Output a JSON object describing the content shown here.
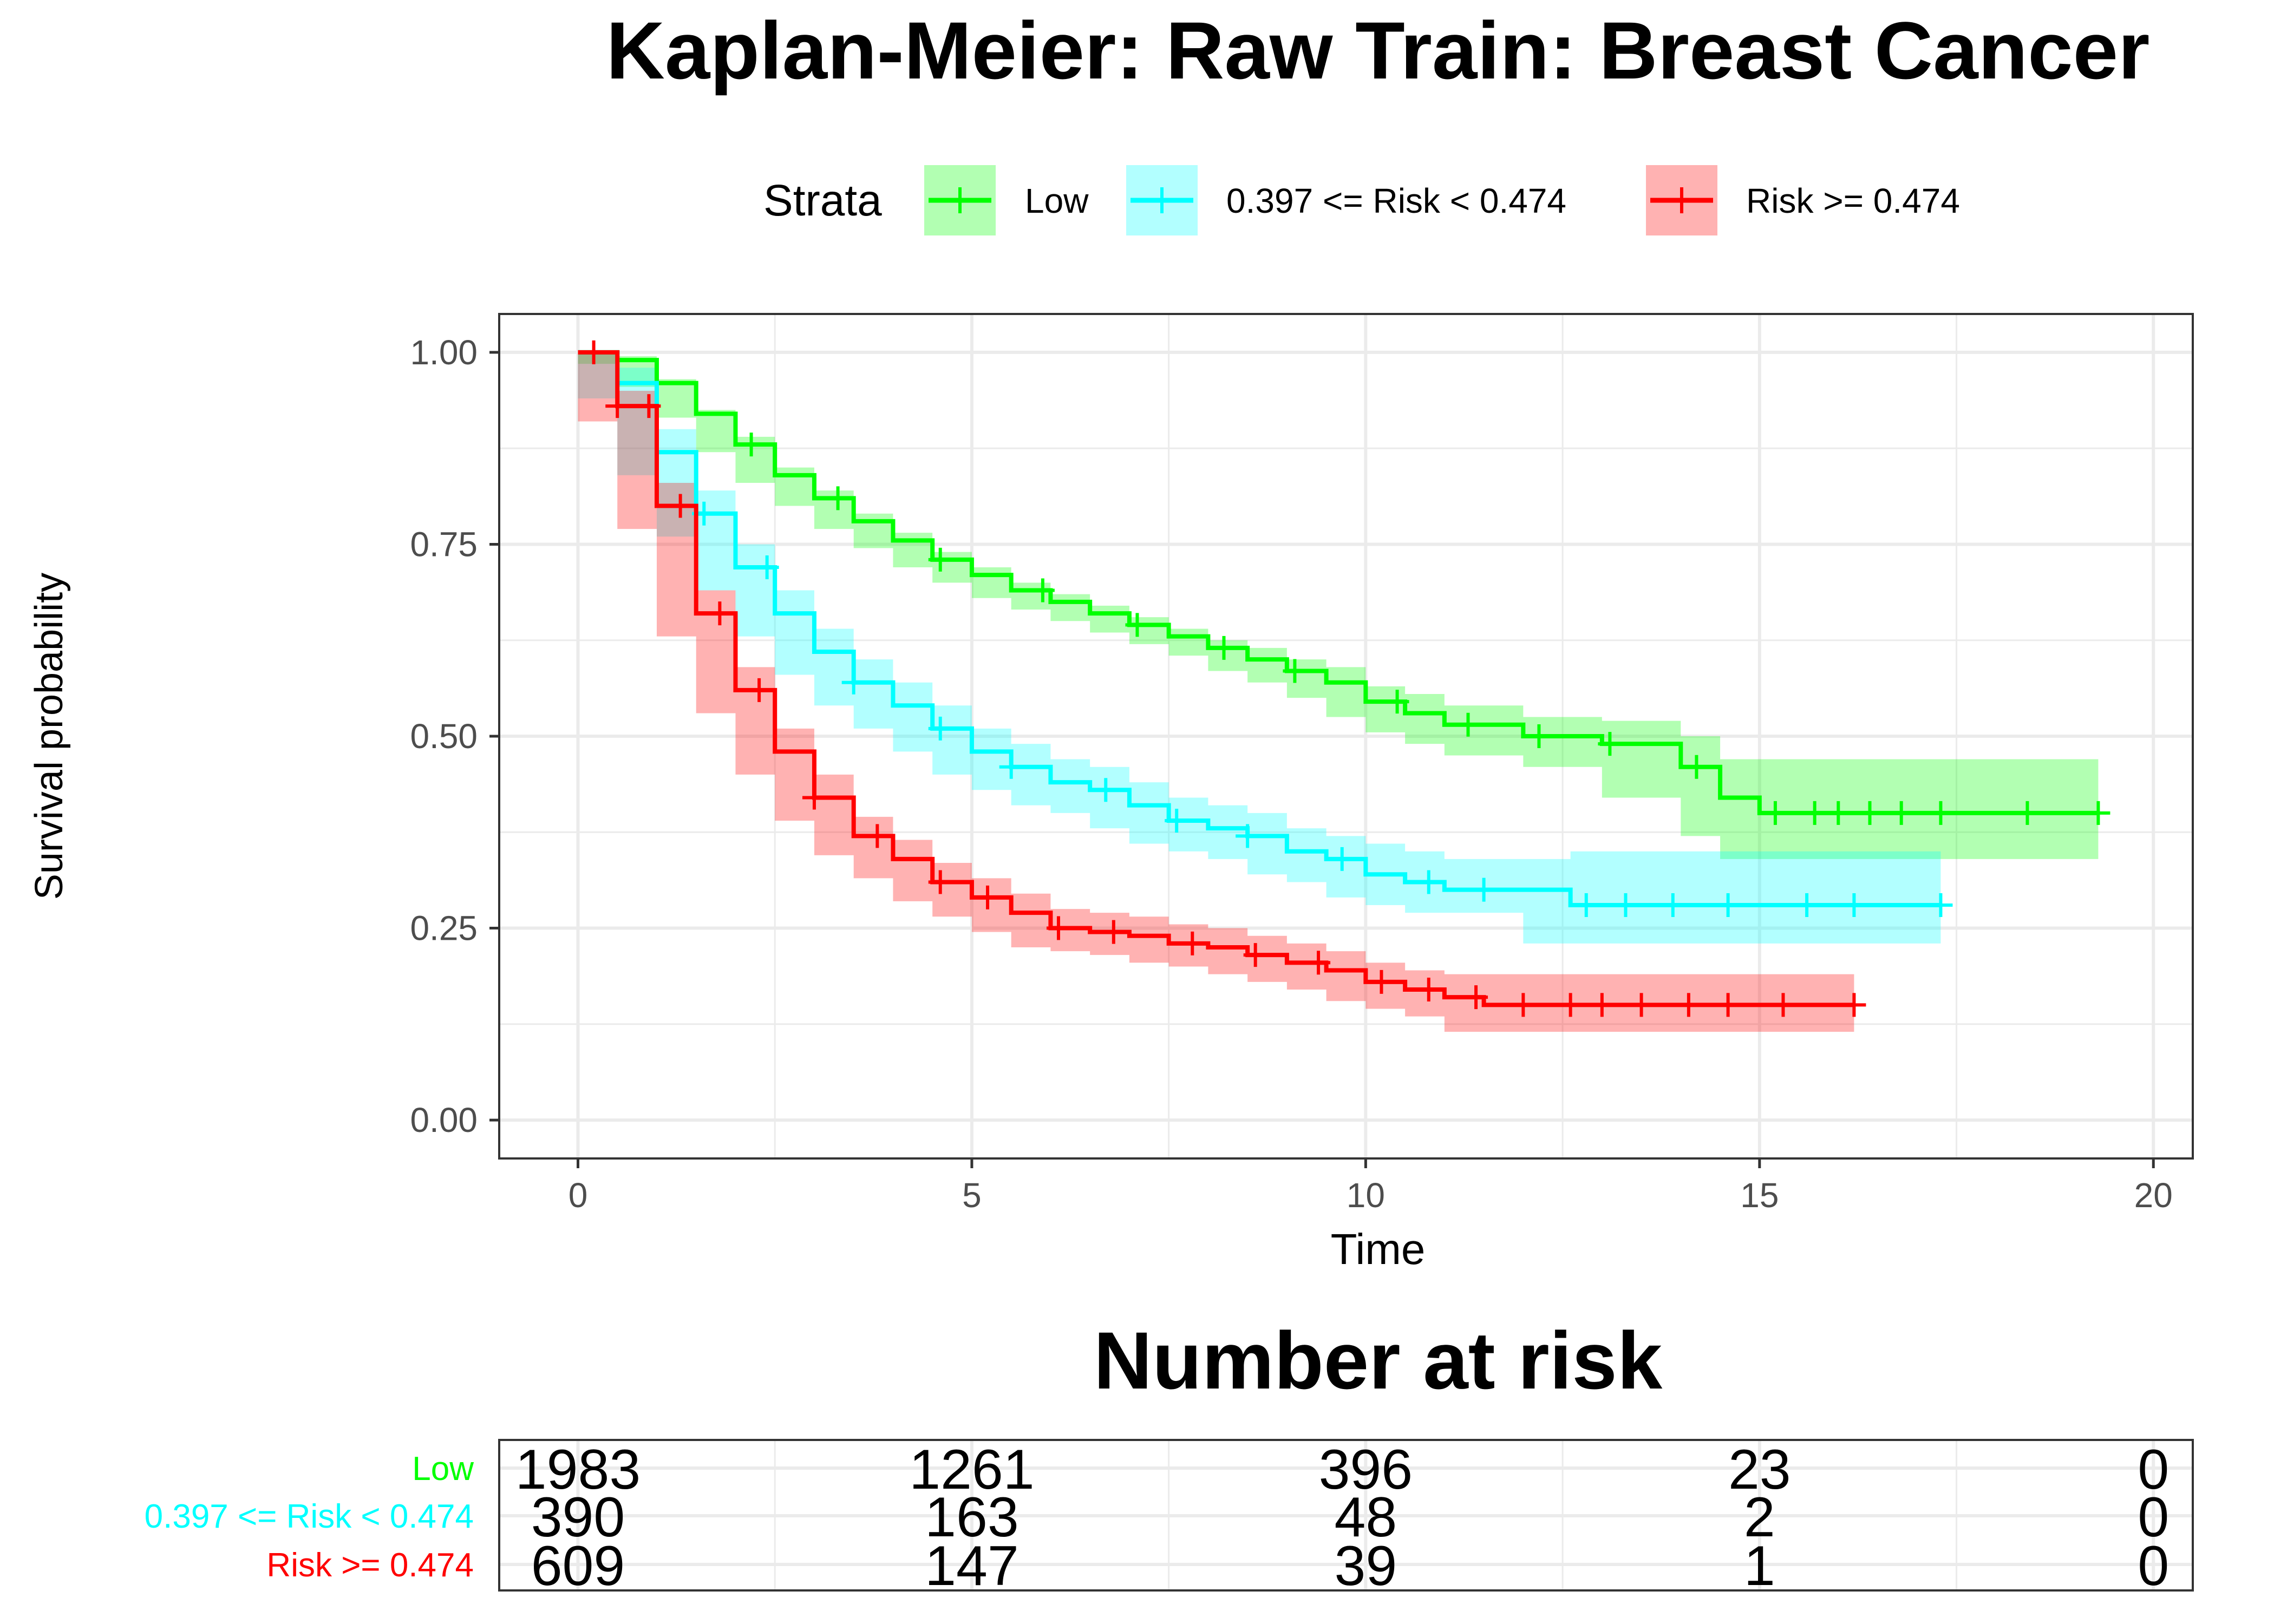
{
  "colors": {
    "low": "#00ff00",
    "mid": "#00ffff",
    "high": "#ff0000",
    "grid": "#ebebeb",
    "panel_border": "#333333",
    "tick_text": "#4d4d4d"
  },
  "chart_data": {
    "type": "line",
    "subtype": "kaplan-meier",
    "title": "Kaplan-Meier: Raw Train: Breast Cancer",
    "xlabel": "Time",
    "ylabel": "Survival probability",
    "xlim": [
      -1,
      20.5
    ],
    "ylim": [
      -0.05,
      1.05
    ],
    "x_ticks": [
      0,
      5,
      10,
      15,
      20
    ],
    "x_tick_labels": [
      "0",
      "5",
      "10",
      "15",
      "20"
    ],
    "y_ticks": [
      0,
      0.25,
      0.5,
      0.75,
      1.0
    ],
    "y_tick_labels": [
      "0.00",
      "0.25",
      "0.50",
      "0.75",
      "1.00"
    ],
    "grid": true,
    "legend": {
      "title": "Strata",
      "position": "top",
      "entries": [
        "Low",
        "0.397 <= Risk < 0.474",
        "Risk >= 0.474"
      ]
    },
    "series": [
      {
        "name": "Low",
        "color_key": "low",
        "x": [
          0,
          0.5,
          1,
          1.5,
          2,
          2.5,
          3,
          3.5,
          4,
          4.5,
          5,
          5.5,
          6,
          6.5,
          7,
          7.5,
          8,
          8.5,
          9,
          9.5,
          10,
          10.5,
          11,
          12,
          13,
          14,
          14.5,
          15,
          16,
          17,
          18,
          19,
          19.3
        ],
        "y": [
          1.0,
          0.99,
          0.96,
          0.92,
          0.88,
          0.84,
          0.81,
          0.78,
          0.755,
          0.73,
          0.71,
          0.69,
          0.675,
          0.66,
          0.645,
          0.63,
          0.615,
          0.6,
          0.585,
          0.57,
          0.545,
          0.53,
          0.515,
          0.5,
          0.49,
          0.46,
          0.42,
          0.4,
          0.4,
          0.4,
          0.4,
          0.4,
          0.4
        ],
        "lower": [
          1.0,
          0.985,
          0.955,
          0.915,
          0.87,
          0.83,
          0.8,
          0.77,
          0.745,
          0.72,
          0.7,
          0.68,
          0.665,
          0.65,
          0.635,
          0.62,
          0.605,
          0.585,
          0.57,
          0.55,
          0.525,
          0.505,
          0.49,
          0.475,
          0.46,
          0.42,
          0.37,
          0.34,
          0.34,
          0.34,
          0.34,
          0.34,
          0.34
        ],
        "upper": [
          1.0,
          0.995,
          0.965,
          0.925,
          0.89,
          0.85,
          0.82,
          0.79,
          0.765,
          0.74,
          0.72,
          0.7,
          0.685,
          0.67,
          0.655,
          0.64,
          0.625,
          0.615,
          0.6,
          0.59,
          0.565,
          0.555,
          0.54,
          0.525,
          0.52,
          0.5,
          0.47,
          0.47,
          0.47,
          0.47,
          0.47,
          0.47,
          0.47
        ],
        "censor_x": [
          2.2,
          3.3,
          4.6,
          5.9,
          7.1,
          8.2,
          9.1,
          10.4,
          11.3,
          12.2,
          13.1,
          14.2,
          15.2,
          15.7,
          16.0,
          16.4,
          16.8,
          17.3,
          18.4,
          19.3
        ]
      },
      {
        "name": "0.397 <= Risk < 0.474",
        "color_key": "mid",
        "x": [
          0,
          0.5,
          1,
          1.5,
          2,
          2.5,
          3,
          3.5,
          4,
          4.5,
          5,
          5.5,
          6,
          6.5,
          7,
          7.5,
          8,
          8.5,
          9,
          9.5,
          10,
          10.5,
          11,
          12,
          12.6,
          13,
          14,
          15,
          16,
          17,
          17.3
        ],
        "y": [
          1.0,
          0.96,
          0.87,
          0.79,
          0.72,
          0.66,
          0.61,
          0.57,
          0.54,
          0.51,
          0.48,
          0.46,
          0.44,
          0.43,
          0.41,
          0.39,
          0.38,
          0.37,
          0.35,
          0.34,
          0.32,
          0.31,
          0.3,
          0.3,
          0.28,
          0.28,
          0.28,
          0.28,
          0.28,
          0.28,
          0.28
        ],
        "lower": [
          1.0,
          0.94,
          0.84,
          0.76,
          0.69,
          0.63,
          0.58,
          0.54,
          0.51,
          0.48,
          0.45,
          0.43,
          0.41,
          0.4,
          0.38,
          0.36,
          0.35,
          0.34,
          0.32,
          0.31,
          0.29,
          0.28,
          0.27,
          0.27,
          0.23,
          0.23,
          0.23,
          0.23,
          0.23,
          0.23,
          0.23
        ],
        "upper": [
          1.0,
          0.98,
          0.9,
          0.82,
          0.75,
          0.69,
          0.64,
          0.6,
          0.57,
          0.54,
          0.51,
          0.49,
          0.47,
          0.46,
          0.44,
          0.42,
          0.41,
          0.4,
          0.38,
          0.37,
          0.36,
          0.35,
          0.34,
          0.34,
          0.35,
          0.35,
          0.35,
          0.35,
          0.35,
          0.35,
          0.35
        ],
        "censor_x": [
          1.6,
          2.4,
          3.5,
          4.6,
          5.5,
          6.7,
          7.6,
          8.5,
          9.7,
          10.8,
          11.5,
          12.8,
          13.3,
          13.9,
          14.6,
          15.6,
          16.2,
          17.3
        ]
      },
      {
        "name": "Risk >= 0.474",
        "color_key": "high",
        "x": [
          0,
          0.5,
          1,
          1.5,
          2,
          2.5,
          3,
          3.5,
          4,
          4.5,
          5,
          5.5,
          6,
          6.5,
          7,
          7.5,
          8,
          8.5,
          9,
          9.5,
          10,
          10.5,
          11,
          11.5,
          12,
          13,
          14,
          15,
          16,
          16.2
        ],
        "y": [
          1.0,
          0.93,
          0.8,
          0.66,
          0.56,
          0.48,
          0.42,
          0.37,
          0.34,
          0.31,
          0.29,
          0.27,
          0.25,
          0.245,
          0.24,
          0.23,
          0.225,
          0.215,
          0.205,
          0.195,
          0.18,
          0.17,
          0.16,
          0.15,
          0.15,
          0.15,
          0.15,
          0.15,
          0.15,
          0.15
        ],
        "lower": [
          1.0,
          0.91,
          0.77,
          0.63,
          0.53,
          0.45,
          0.39,
          0.345,
          0.315,
          0.285,
          0.265,
          0.245,
          0.225,
          0.22,
          0.215,
          0.205,
          0.2,
          0.19,
          0.18,
          0.17,
          0.155,
          0.145,
          0.135,
          0.115,
          0.115,
          0.115,
          0.115,
          0.115,
          0.115,
          0.115
        ],
        "upper": [
          1.0,
          0.95,
          0.83,
          0.69,
          0.59,
          0.51,
          0.45,
          0.395,
          0.365,
          0.335,
          0.315,
          0.295,
          0.275,
          0.27,
          0.265,
          0.255,
          0.25,
          0.24,
          0.23,
          0.22,
          0.205,
          0.195,
          0.19,
          0.19,
          0.19,
          0.19,
          0.19,
          0.19,
          0.19,
          0.19
        ],
        "censor_x": [
          0.2,
          0.5,
          0.9,
          1.3,
          1.8,
          2.3,
          3.0,
          3.8,
          4.6,
          5.2,
          6.1,
          6.8,
          7.8,
          8.6,
          9.4,
          10.2,
          10.8,
          11.4,
          12.0,
          12.6,
          13.0,
          13.5,
          14.1,
          14.6,
          15.3,
          16.2
        ]
      }
    ]
  },
  "risk_table": {
    "title": "Number at risk",
    "time_points": [
      0,
      5,
      10,
      15,
      20
    ],
    "rows": [
      {
        "label": "Low",
        "color_key": "low",
        "values": [
          "1983",
          "1261",
          "396",
          "23",
          "0"
        ]
      },
      {
        "label": "0.397 <= Risk < 0.474",
        "color_key": "mid",
        "values": [
          "390",
          "163",
          "48",
          "2",
          "0"
        ]
      },
      {
        "label": "Risk >= 0.474",
        "color_key": "high",
        "values": [
          "609",
          "147",
          "39",
          "1",
          "0"
        ]
      }
    ]
  }
}
